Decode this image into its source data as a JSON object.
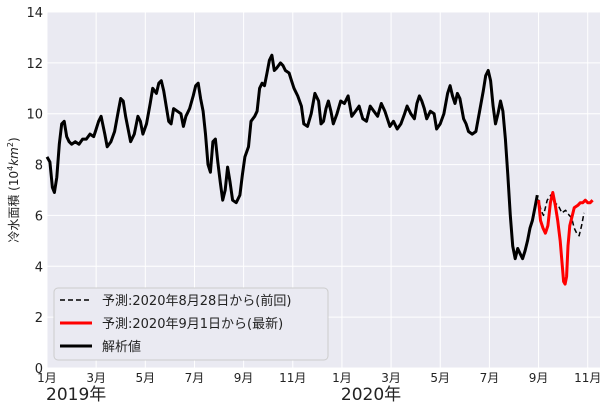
{
  "chart_data": {
    "type": "line",
    "ylabel_main": "冷水面積 (10",
    "ylabel_sup": "4",
    "ylabel_unit": "km",
    "ylabel_unit_sup": "2",
    "ylabel_close": ")",
    "ylim": [
      0,
      14
    ],
    "yticks": [
      "0",
      "2",
      "4",
      "6",
      "8",
      "10",
      "12",
      "14"
    ],
    "xlim": [
      0,
      22.5
    ],
    "xticks": [
      {
        "pos": 0,
        "label": "1月"
      },
      {
        "pos": 2,
        "label": "3月"
      },
      {
        "pos": 4,
        "label": "5月"
      },
      {
        "pos": 6,
        "label": "7月"
      },
      {
        "pos": 8,
        "label": "9月"
      },
      {
        "pos": 10,
        "label": "11月"
      },
      {
        "pos": 12,
        "label": "1月"
      },
      {
        "pos": 14,
        "label": "3月"
      },
      {
        "pos": 16,
        "label": "5月"
      },
      {
        "pos": 18,
        "label": "7月"
      },
      {
        "pos": 20,
        "label": "9月"
      },
      {
        "pos": 22,
        "label": "11月"
      }
    ],
    "year_labels": [
      {
        "pos": 0,
        "label": "2019年"
      },
      {
        "pos": 12,
        "label": "2020年"
      }
    ],
    "grid": true,
    "legend_position": "lower-left",
    "series": [
      {
        "name": "予測:2020年8月28日から(前回)",
        "color": "#000000",
        "style": "dashed",
        "points": [
          [
            19.9,
            6.5
          ],
          [
            20.0,
            6.6
          ],
          [
            20.1,
            6.2
          ],
          [
            20.2,
            6.0
          ],
          [
            20.35,
            6.6
          ],
          [
            20.5,
            6.8
          ],
          [
            20.65,
            6.5
          ],
          [
            20.8,
            6.4
          ],
          [
            20.95,
            6.1
          ],
          [
            21.1,
            6.2
          ],
          [
            21.25,
            6.0
          ],
          [
            21.35,
            5.9
          ],
          [
            21.45,
            5.5
          ],
          [
            21.55,
            5.3
          ],
          [
            21.65,
            5.2
          ],
          [
            21.75,
            5.6
          ],
          [
            21.85,
            6.1
          ]
        ]
      },
      {
        "name": "予測:2020年9月1日から(最新)",
        "color": "#ff0000",
        "style": "solid",
        "points": [
          [
            20.0,
            6.6
          ],
          [
            20.08,
            5.8
          ],
          [
            20.18,
            5.5
          ],
          [
            20.28,
            5.3
          ],
          [
            20.38,
            5.6
          ],
          [
            20.48,
            6.5
          ],
          [
            20.58,
            6.9
          ],
          [
            20.68,
            6.4
          ],
          [
            20.78,
            5.8
          ],
          [
            20.88,
            5.0
          ],
          [
            20.95,
            4.2
          ],
          [
            21.02,
            3.4
          ],
          [
            21.08,
            3.3
          ],
          [
            21.14,
            3.6
          ],
          [
            21.2,
            4.8
          ],
          [
            21.27,
            5.6
          ],
          [
            21.35,
            5.9
          ],
          [
            21.45,
            6.3
          ],
          [
            21.6,
            6.4
          ],
          [
            21.7,
            6.5
          ],
          [
            21.8,
            6.5
          ],
          [
            21.9,
            6.6
          ],
          [
            22.0,
            6.5
          ],
          [
            22.1,
            6.5
          ],
          [
            22.2,
            6.6
          ]
        ]
      },
      {
        "name": "解析値",
        "color": "#000000",
        "style": "solid",
        "points": [
          [
            0.0,
            8.3
          ],
          [
            0.12,
            8.1
          ],
          [
            0.22,
            7.1
          ],
          [
            0.3,
            6.9
          ],
          [
            0.4,
            7.5
          ],
          [
            0.5,
            8.8
          ],
          [
            0.6,
            9.6
          ],
          [
            0.7,
            9.7
          ],
          [
            0.8,
            9.1
          ],
          [
            0.9,
            8.9
          ],
          [
            1.0,
            8.8
          ],
          [
            1.15,
            8.9
          ],
          [
            1.3,
            8.8
          ],
          [
            1.45,
            9.0
          ],
          [
            1.6,
            9.0
          ],
          [
            1.75,
            9.2
          ],
          [
            1.9,
            9.1
          ],
          [
            2.0,
            9.4
          ],
          [
            2.1,
            9.7
          ],
          [
            2.2,
            9.9
          ],
          [
            2.35,
            9.2
          ],
          [
            2.45,
            8.7
          ],
          [
            2.6,
            8.9
          ],
          [
            2.75,
            9.3
          ],
          [
            2.9,
            10.1
          ],
          [
            3.0,
            10.6
          ],
          [
            3.1,
            10.5
          ],
          [
            3.2,
            9.9
          ],
          [
            3.3,
            9.4
          ],
          [
            3.4,
            8.9
          ],
          [
            3.55,
            9.2
          ],
          [
            3.7,
            9.9
          ],
          [
            3.8,
            9.7
          ],
          [
            3.9,
            9.2
          ],
          [
            4.05,
            9.6
          ],
          [
            4.2,
            10.4
          ],
          [
            4.3,
            11.0
          ],
          [
            4.45,
            10.8
          ],
          [
            4.55,
            11.2
          ],
          [
            4.65,
            11.3
          ],
          [
            4.75,
            10.9
          ],
          [
            4.85,
            10.3
          ],
          [
            4.95,
            9.7
          ],
          [
            5.05,
            9.6
          ],
          [
            5.15,
            10.2
          ],
          [
            5.3,
            10.1
          ],
          [
            5.45,
            10.0
          ],
          [
            5.55,
            9.5
          ],
          [
            5.65,
            9.9
          ],
          [
            5.8,
            10.2
          ],
          [
            5.95,
            10.7
          ],
          [
            6.05,
            11.1
          ],
          [
            6.15,
            11.2
          ],
          [
            6.25,
            10.6
          ],
          [
            6.35,
            10.1
          ],
          [
            6.45,
            9.2
          ],
          [
            6.55,
            8.0
          ],
          [
            6.65,
            7.7
          ],
          [
            6.75,
            8.9
          ],
          [
            6.85,
            9.0
          ],
          [
            6.95,
            8.1
          ],
          [
            7.05,
            7.3
          ],
          [
            7.15,
            6.6
          ],
          [
            7.25,
            7.0
          ],
          [
            7.35,
            7.9
          ],
          [
            7.45,
            7.3
          ],
          [
            7.55,
            6.6
          ],
          [
            7.7,
            6.5
          ],
          [
            7.85,
            6.8
          ],
          [
            7.95,
            7.6
          ],
          [
            8.05,
            8.3
          ],
          [
            8.2,
            8.7
          ],
          [
            8.3,
            9.7
          ],
          [
            8.45,
            9.9
          ],
          [
            8.55,
            10.1
          ],
          [
            8.65,
            11.0
          ],
          [
            8.75,
            11.2
          ],
          [
            8.85,
            11.1
          ],
          [
            8.95,
            11.6
          ],
          [
            9.05,
            12.1
          ],
          [
            9.15,
            12.3
          ],
          [
            9.25,
            11.7
          ],
          [
            9.35,
            11.8
          ],
          [
            9.5,
            12.0
          ],
          [
            9.6,
            11.9
          ],
          [
            9.7,
            11.7
          ],
          [
            9.85,
            11.6
          ],
          [
            9.95,
            11.3
          ],
          [
            10.05,
            11.0
          ],
          [
            10.2,
            10.7
          ],
          [
            10.35,
            10.3
          ],
          [
            10.45,
            9.6
          ],
          [
            10.6,
            9.5
          ],
          [
            10.75,
            10.0
          ],
          [
            10.9,
            10.8
          ],
          [
            11.05,
            10.5
          ],
          [
            11.15,
            9.6
          ],
          [
            11.25,
            9.7
          ],
          [
            11.35,
            10.2
          ],
          [
            11.45,
            10.5
          ],
          [
            11.55,
            10.1
          ],
          [
            11.65,
            9.6
          ],
          [
            11.8,
            10.0
          ],
          [
            11.95,
            10.5
          ],
          [
            12.1,
            10.4
          ],
          [
            12.25,
            10.7
          ],
          [
            12.4,
            9.9
          ],
          [
            12.55,
            10.1
          ],
          [
            12.7,
            10.3
          ],
          [
            12.85,
            9.8
          ],
          [
            13.0,
            9.7
          ],
          [
            13.15,
            10.3
          ],
          [
            13.3,
            10.1
          ],
          [
            13.45,
            9.9
          ],
          [
            13.6,
            10.4
          ],
          [
            13.75,
            10.1
          ],
          [
            13.85,
            9.8
          ],
          [
            13.95,
            9.5
          ],
          [
            14.1,
            9.7
          ],
          [
            14.25,
            9.4
          ],
          [
            14.4,
            9.6
          ],
          [
            14.55,
            10.0
          ],
          [
            14.65,
            10.3
          ],
          [
            14.8,
            10.0
          ],
          [
            14.95,
            9.8
          ],
          [
            15.05,
            10.4
          ],
          [
            15.15,
            10.7
          ],
          [
            15.25,
            10.5
          ],
          [
            15.35,
            10.2
          ],
          [
            15.45,
            9.8
          ],
          [
            15.6,
            10.1
          ],
          [
            15.75,
            10.0
          ],
          [
            15.85,
            9.4
          ],
          [
            16.0,
            9.6
          ],
          [
            16.15,
            10.0
          ],
          [
            16.3,
            10.8
          ],
          [
            16.4,
            11.1
          ],
          [
            16.5,
            10.7
          ],
          [
            16.6,
            10.4
          ],
          [
            16.7,
            10.8
          ],
          [
            16.8,
            10.6
          ],
          [
            16.95,
            9.8
          ],
          [
            17.05,
            9.6
          ],
          [
            17.15,
            9.3
          ],
          [
            17.3,
            9.2
          ],
          [
            17.45,
            9.3
          ],
          [
            17.6,
            10.1
          ],
          [
            17.75,
            10.9
          ],
          [
            17.85,
            11.5
          ],
          [
            17.95,
            11.7
          ],
          [
            18.05,
            11.3
          ],
          [
            18.15,
            10.3
          ],
          [
            18.25,
            9.6
          ],
          [
            18.35,
            10.0
          ],
          [
            18.45,
            10.5
          ],
          [
            18.55,
            10.1
          ],
          [
            18.65,
            9.0
          ],
          [
            18.75,
            7.6
          ],
          [
            18.85,
            6.0
          ],
          [
            18.95,
            4.8
          ],
          [
            19.05,
            4.3
          ],
          [
            19.15,
            4.7
          ],
          [
            19.25,
            4.5
          ],
          [
            19.35,
            4.3
          ],
          [
            19.45,
            4.6
          ],
          [
            19.55,
            5.0
          ],
          [
            19.65,
            5.5
          ],
          [
            19.75,
            5.8
          ],
          [
            19.85,
            6.3
          ],
          [
            19.95,
            6.8
          ]
        ]
      }
    ]
  }
}
